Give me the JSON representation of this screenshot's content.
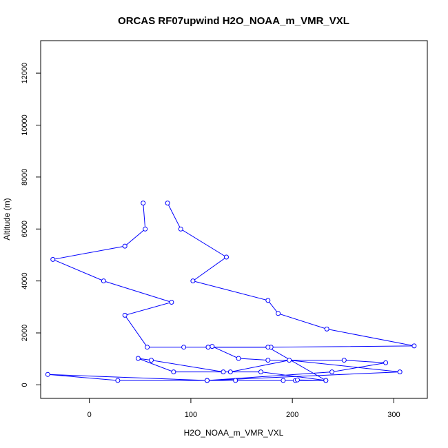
{
  "chart_data": {
    "type": "line",
    "title": "ORCAS RF07upwind H2O_NOAA_m_VMR_VXL",
    "xlabel": "H2O_NOAA_m_VMR_VXL",
    "ylabel": "Altitude (m)",
    "xlim": [
      -48,
      333
    ],
    "ylim": [
      -520,
      13250
    ],
    "xticks": [
      0,
      100,
      200,
      300
    ],
    "yticks": [
      0,
      2000,
      4000,
      6000,
      8000,
      10000,
      12000
    ],
    "grid": false,
    "legend": "none",
    "colors": {
      "series": "#0000ff",
      "axis": "#000000"
    },
    "series": [
      {
        "marker": "open-circle",
        "x": [
          77,
          90,
          135,
          102,
          176,
          186,
          234,
          320,
          179,
          93,
          57,
          35,
          81,
          14,
          -36,
          35,
          55,
          53
        ],
        "y": [
          7000,
          6000,
          4920,
          4000,
          3250,
          2750,
          2150,
          1500,
          1450,
          1450,
          1450,
          2680,
          3180,
          4000,
          4830,
          5340,
          6000,
          7000
        ],
        "note": ""
      },
      {
        "marker": "open-circle",
        "x": [
          117,
          121,
          147,
          176,
          251,
          292,
          239,
          116,
          144,
          191,
          203,
          205,
          233,
          169,
          83,
          48,
          61,
          132,
          139,
          197,
          306,
          116,
          28,
          -41,
          116,
          233,
          176,
          117
        ],
        "y": [
          1450,
          1480,
          1020,
          950,
          950,
          850,
          500,
          170,
          170,
          170,
          170,
          190,
          170,
          500,
          500,
          1020,
          950,
          500,
          500,
          950,
          500,
          170,
          170,
          400,
          170,
          170,
          1450,
          1450
        ],
        "note": ""
      }
    ]
  }
}
